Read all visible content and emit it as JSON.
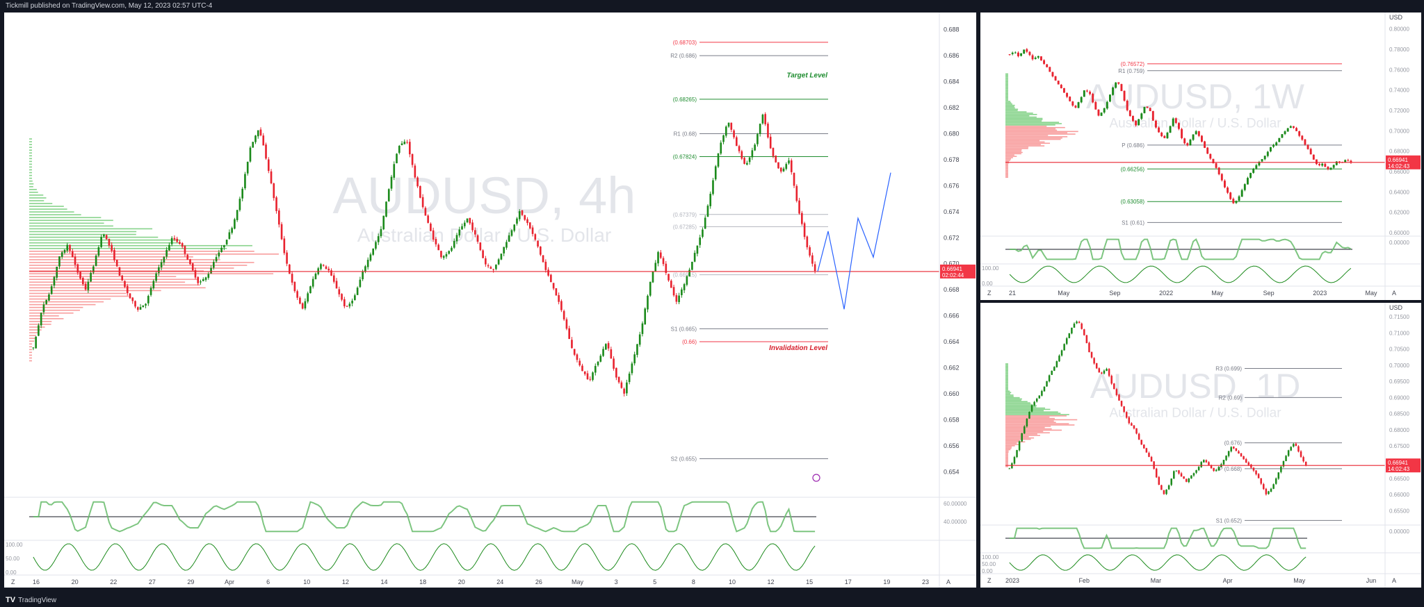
{
  "header": {
    "published": "Tickmill published on TradingView.com, May 12, 2023 02:57 UTC-4"
  },
  "footer": {
    "brand": "TradingView",
    "logo": "TV"
  },
  "colors": {
    "up": "#089981",
    "down": "#f23645",
    "accent_green": "#1e8c2f",
    "accent_red": "#d61f2c",
    "price_bg": "#f23645"
  },
  "main": {
    "watermark": {
      "symbol": "AUDUSD, 4h",
      "desc": "Australian Dollar / U.S. Dollar"
    },
    "price": "0.66941",
    "countdown": "02:02:44",
    "levels": [
      {
        "label": "(0.68703)",
        "price": 0.68703,
        "color": "#f23645"
      },
      {
        "label": "R2 (0.686)",
        "price": 0.686,
        "color": "#787b86"
      },
      {
        "label": "(0.68265)",
        "price": 0.68265,
        "color": "#1e8c2f"
      },
      {
        "label": "R1 (0.68)",
        "price": 0.68,
        "color": "#787b86"
      },
      {
        "label": "(0.67824)",
        "price": 0.67824,
        "color": "#1e8c2f"
      },
      {
        "label": "(0.67379)",
        "price": 0.67379,
        "color": "#b2b5be"
      },
      {
        "label": "(0.67285)",
        "price": 0.67285,
        "color": "#b2b5be"
      },
      {
        "label": "(0.66915)",
        "price": 0.66915,
        "color": "#b2b5be"
      },
      {
        "label": "S1 (0.665)",
        "price": 0.665,
        "color": "#787b86"
      },
      {
        "label": "(0.66)",
        "price": 0.664,
        "color": "#f23645"
      },
      {
        "label": "S2 (0.655)",
        "price": 0.655,
        "color": "#787b86"
      }
    ],
    "annotations": {
      "target": "Target Level",
      "invalidation": "Invalidation Level"
    },
    "axis_ticks": [
      "0.688",
      "0.686",
      "0.684",
      "0.682",
      "0.680",
      "0.678",
      "0.676",
      "0.674",
      "0.672",
      "0.670",
      "0.668",
      "0.666",
      "0.664",
      "0.662",
      "0.660",
      "0.658",
      "0.656",
      "0.654"
    ],
    "time_ticks": [
      "16",
      "20",
      "22",
      "27",
      "29",
      "Apr",
      "6",
      "10",
      "12",
      "14",
      "18",
      "20",
      "24",
      "26",
      "May",
      "3",
      "5",
      "8",
      "10",
      "12",
      "15",
      "17",
      "19",
      "23"
    ],
    "osc_ticks": [
      "60.00000",
      "40.00000"
    ],
    "osc2_ticks": [
      "100.00",
      "50.00",
      "0.00"
    ],
    "az": {
      "left": "Z",
      "right": "A"
    }
  },
  "weekly": {
    "watermark": {
      "symbol": "AUDUSD, 1W",
      "desc": "Australian Dollar / U.S. Dollar"
    },
    "currency": "USD",
    "price": "0.66941",
    "countdown": "14:02:43",
    "axis_ticks": [
      "0.80000",
      "0.78000",
      "0.76000",
      "0.74000",
      "0.72000",
      "0.70000",
      "0.68000",
      "0.66000",
      "0.64000",
      "0.62000",
      "0.60000"
    ],
    "levels": [
      {
        "label": "(0.76572)",
        "price": 0.76572,
        "color": "#f23645"
      },
      {
        "label": "R1 (0.759)",
        "price": 0.759,
        "color": "#787b86"
      },
      {
        "label": "P (0.686)",
        "price": 0.686,
        "color": "#787b86"
      },
      {
        "label": "(0.66256)",
        "price": 0.66256,
        "color": "#1e8c2f"
      },
      {
        "label": "(0.63058)",
        "price": 0.63058,
        "color": "#1e8c2f"
      },
      {
        "label": "S1 (0.61)",
        "price": 0.61,
        "color": "#787b86"
      }
    ],
    "osc_ticks": [
      "0.00000"
    ],
    "osc2_ticks": [
      "100.00",
      "0.00"
    ],
    "time_ticks": [
      "21",
      "May",
      "Sep",
      "2022",
      "May",
      "Sep",
      "2023",
      "May"
    ],
    "az": {
      "left": "Z",
      "right": "A"
    }
  },
  "daily": {
    "watermark": {
      "symbol": "AUDUSD, 1D",
      "desc": "Australian Dollar / U.S. Dollar"
    },
    "currency": "USD",
    "price": "0.66941",
    "countdown": "14:02:43",
    "axis_ticks": [
      "0.71500",
      "0.71000",
      "0.70500",
      "0.70000",
      "0.69500",
      "0.69000",
      "0.68500",
      "0.68000",
      "0.67500",
      "0.67000",
      "0.66500",
      "0.66000",
      "0.65500"
    ],
    "levels": [
      {
        "label": "R3 (0.699)",
        "price": 0.699,
        "color": "#787b86"
      },
      {
        "label": "R2 (0.69)",
        "price": 0.69,
        "color": "#787b86"
      },
      {
        "label": "(0.676)",
        "price": 0.676,
        "color": "#787b86"
      },
      {
        "label": "P (0.668)",
        "price": 0.668,
        "color": "#787b86"
      },
      {
        "label": "S1 (0.652)",
        "price": 0.652,
        "color": "#787b86"
      }
    ],
    "osc_ticks": [
      "0.00000"
    ],
    "osc2_ticks": [
      "100.00",
      "50.00",
      "0.00"
    ],
    "time_ticks": [
      "2023",
      "Feb",
      "Mar",
      "Apr",
      "May",
      "Jun"
    ],
    "az": {
      "left": "Z",
      "right": "A"
    }
  },
  "chart_data": [
    {
      "type": "candlestick",
      "title": "AUDUSD, 4h",
      "ylim": [
        0.653,
        0.689
      ],
      "series": [
        {
          "name": "AUDUSD",
          "close_path": [
            0.6635,
            0.6665,
            0.668,
            0.6705,
            0.6715,
            0.6695,
            0.668,
            0.67,
            0.6725,
            0.671,
            0.669,
            0.6675,
            0.6665,
            0.667,
            0.669,
            0.6705,
            0.672,
            0.6715,
            0.67,
            0.6685,
            0.669,
            0.6705,
            0.6715,
            0.673,
            0.6755,
            0.679,
            0.6805,
            0.6775,
            0.674,
            0.6705,
            0.668,
            0.6665,
            0.6685,
            0.67,
            0.6695,
            0.668,
            0.6665,
            0.6675,
            0.6695,
            0.671,
            0.6725,
            0.676,
            0.679,
            0.6795,
            0.6765,
            0.674,
            0.672,
            0.6705,
            0.671,
            0.6725,
            0.6735,
            0.672,
            0.67,
            0.6695,
            0.671,
            0.6725,
            0.674,
            0.673,
            0.6715,
            0.6695,
            0.668,
            0.666,
            0.6635,
            0.662,
            0.661,
            0.6625,
            0.664,
            0.6615,
            0.66,
            0.6625,
            0.665,
            0.6685,
            0.671,
            0.669,
            0.667,
            0.6685,
            0.6705,
            0.6725,
            0.6755,
            0.679,
            0.681,
            0.679,
            0.6775,
            0.679,
            0.6815,
            0.6785,
            0.677,
            0.678,
            0.6745,
            0.6715,
            0.6694
          ]
        }
      ]
    },
    {
      "type": "candlestick",
      "title": "AUDUSD, 1W",
      "ylim": [
        0.598,
        0.812
      ],
      "series": [
        {
          "name": "AUDUSD",
          "close_path": [
            0.775,
            0.778,
            0.772,
            0.78,
            0.776,
            0.77,
            0.774,
            0.768,
            0.762,
            0.755,
            0.748,
            0.742,
            0.735,
            0.728,
            0.722,
            0.73,
            0.74,
            0.738,
            0.725,
            0.715,
            0.72,
            0.73,
            0.742,
            0.75,
            0.738,
            0.722,
            0.712,
            0.705,
            0.715,
            0.725,
            0.72,
            0.705,
            0.698,
            0.692,
            0.7,
            0.712,
            0.705,
            0.69,
            0.685,
            0.695,
            0.7,
            0.69,
            0.68,
            0.672,
            0.665,
            0.655,
            0.645,
            0.635,
            0.628,
            0.635,
            0.645,
            0.655,
            0.662,
            0.668,
            0.672,
            0.678,
            0.685,
            0.688,
            0.695,
            0.7,
            0.705,
            0.702,
            0.695,
            0.688,
            0.68,
            0.672,
            0.665,
            0.668,
            0.662,
            0.665,
            0.67,
            0.668,
            0.672,
            0.669
          ]
        }
      ]
    },
    {
      "type": "candlestick",
      "title": "AUDUSD, 1D",
      "ylim": [
        0.651,
        0.718
      ],
      "series": [
        {
          "name": "AUDUSD",
          "close_path": [
            0.668,
            0.672,
            0.678,
            0.683,
            0.688,
            0.69,
            0.693,
            0.697,
            0.7,
            0.704,
            0.708,
            0.712,
            0.714,
            0.71,
            0.704,
            0.7,
            0.697,
            0.699,
            0.694,
            0.69,
            0.686,
            0.682,
            0.68,
            0.676,
            0.673,
            0.67,
            0.664,
            0.66,
            0.663,
            0.668,
            0.666,
            0.664,
            0.666,
            0.668,
            0.671,
            0.669,
            0.667,
            0.669,
            0.672,
            0.675,
            0.673,
            0.671,
            0.669,
            0.667,
            0.664,
            0.66,
            0.662,
            0.666,
            0.67,
            0.674,
            0.676,
            0.672,
            0.669
          ]
        }
      ]
    }
  ]
}
